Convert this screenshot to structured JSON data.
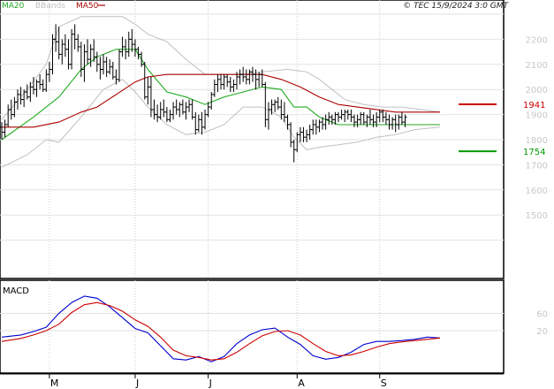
{
  "header": {
    "ma20_label": "MA20",
    "bbands_label": "BBands",
    "ma50_label": "MA50",
    "copyright": "© TEC 15/9/2024 3:0 GMT"
  },
  "colors": {
    "ma20": "#22aa22",
    "ma50": "#aa0000",
    "bbands": "#c0c0c0",
    "price": "#000000",
    "macd": "#0000cc",
    "signal": "#cc0000",
    "grid": "#e2e2e2",
    "ytick": "#c8c8c8"
  },
  "chart_data": [
    {
      "type": "line",
      "panel": "price",
      "ylim": [
        1300,
        2300
      ],
      "yticks": [
        1500,
        1600,
        1700,
        1800,
        1900,
        2000,
        2100,
        2200
      ],
      "xlim": [
        0,
        143
      ],
      "x_ticks": [
        {
          "label": "M",
          "x": 15
        },
        {
          "label": "J",
          "x": 42
        },
        {
          "label": "J",
          "x": 65
        },
        {
          "label": "A",
          "x": 93
        },
        {
          "label": "S",
          "x": 119
        }
      ],
      "levels": [
        {
          "value": 1941,
          "label": "1941",
          "color": "#cc0000"
        },
        {
          "value": 1754,
          "label": "1754",
          "color": "#009900"
        }
      ],
      "ohlc": [
        [
          1850,
          1870,
          1800,
          1830
        ],
        [
          1830,
          1880,
          1810,
          1860
        ],
        [
          1860,
          1940,
          1850,
          1920
        ],
        [
          1920,
          1960,
          1880,
          1900
        ],
        [
          1900,
          1970,
          1890,
          1950
        ],
        [
          1950,
          2000,
          1920,
          1980
        ],
        [
          1980,
          2010,
          1940,
          1960
        ],
        [
          1960,
          2000,
          1930,
          1990
        ],
        [
          1990,
          2020,
          1960,
          1970
        ],
        [
          1970,
          2030,
          1950,
          2010
        ],
        [
          2010,
          2050,
          1980,
          2000
        ],
        [
          2000,
          2040,
          1970,
          2030
        ],
        [
          2030,
          2060,
          2000,
          2020
        ],
        [
          2020,
          2040,
          1990,
          2000
        ],
        [
          2000,
          2080,
          1990,
          2060
        ],
        [
          2060,
          2110,
          2030,
          2080
        ],
        [
          2080,
          2220,
          2060,
          2200
        ],
        [
          2200,
          2260,
          2150,
          2190
        ],
        [
          2190,
          2250,
          2120,
          2140
        ],
        [
          2140,
          2200,
          2100,
          2180
        ],
        [
          2180,
          2220,
          2130,
          2160
        ],
        [
          2160,
          2200,
          2080,
          2100
        ],
        [
          2100,
          2240,
          2080,
          2220
        ],
        [
          2220,
          2260,
          2160,
          2200
        ],
        [
          2200,
          2220,
          2150,
          2170
        ],
        [
          2170,
          2190,
          2050,
          2080
        ],
        [
          2080,
          2180,
          2030,
          2150
        ],
        [
          2150,
          2200,
          2100,
          2120
        ],
        [
          2120,
          2180,
          2090,
          2160
        ],
        [
          2160,
          2200,
          2110,
          2130
        ],
        [
          2130,
          2150,
          2070,
          2100
        ],
        [
          2100,
          2130,
          2040,
          2080
        ],
        [
          2080,
          2140,
          2060,
          2110
        ],
        [
          2110,
          2130,
          2050,
          2070
        ],
        [
          2070,
          2120,
          2060,
          2090
        ],
        [
          2090,
          2110,
          2040,
          2050
        ],
        [
          2050,
          2080,
          2020,
          2040
        ],
        [
          2040,
          2160,
          2030,
          2150
        ],
        [
          2150,
          2210,
          2130,
          2170
        ],
        [
          2170,
          2200,
          2120,
          2150
        ],
        [
          2150,
          2230,
          2130,
          2200
        ],
        [
          2200,
          2240,
          2150,
          2180
        ],
        [
          2180,
          2200,
          2130,
          2160
        ],
        [
          2160,
          2170,
          2120,
          2140
        ],
        [
          2140,
          2150,
          2090,
          2100
        ],
        [
          2100,
          2110,
          1960,
          1970
        ],
        [
          1970,
          2050,
          1940,
          2010
        ],
        [
          2010,
          2050,
          1890,
          1920
        ],
        [
          1920,
          1960,
          1880,
          1900
        ],
        [
          1900,
          1940,
          1870,
          1890
        ],
        [
          1890,
          1950,
          1880,
          1920
        ],
        [
          1920,
          1960,
          1890,
          1910
        ],
        [
          1910,
          1930,
          1870,
          1880
        ],
        [
          1880,
          1920,
          1870,
          1900
        ],
        [
          1900,
          1950,
          1880,
          1930
        ],
        [
          1930,
          1960,
          1900,
          1920
        ],
        [
          1920,
          1950,
          1890,
          1940
        ],
        [
          1940,
          1960,
          1900,
          1910
        ],
        [
          1910,
          1950,
          1880,
          1930
        ],
        [
          1930,
          1960,
          1910,
          1940
        ],
        [
          1940,
          1960,
          1880,
          1890
        ],
        [
          1890,
          1910,
          1820,
          1840
        ],
        [
          1840,
          1900,
          1830,
          1880
        ],
        [
          1880,
          1910,
          1820,
          1850
        ],
        [
          1850,
          1920,
          1840,
          1900
        ],
        [
          1900,
          1950,
          1890,
          1930
        ],
        [
          1930,
          1990,
          1920,
          1980
        ],
        [
          1980,
          2040,
          1970,
          2020
        ],
        [
          2020,
          2060,
          1990,
          2040
        ],
        [
          2040,
          2060,
          2000,
          2020
        ],
        [
          2020,
          2060,
          2000,
          2050
        ],
        [
          2050,
          2060,
          2010,
          2030
        ],
        [
          2030,
          2050,
          1990,
          2010
        ],
        [
          2010,
          2040,
          1990,
          2020
        ],
        [
          2020,
          2070,
          2000,
          2050
        ],
        [
          2050,
          2080,
          2020,
          2060
        ],
        [
          2060,
          2090,
          2030,
          2050
        ],
        [
          2050,
          2080,
          2020,
          2040
        ],
        [
          2040,
          2080,
          2020,
          2070
        ],
        [
          2070,
          2090,
          2030,
          2060
        ],
        [
          2060,
          2080,
          2000,
          2040
        ],
        [
          2040,
          2070,
          2010,
          2060
        ],
        [
          2060,
          2080,
          2010,
          2020
        ],
        [
          2020,
          2030,
          1850,
          1880
        ],
        [
          1880,
          1950,
          1840,
          1920
        ],
        [
          1920,
          1960,
          1900,
          1940
        ],
        [
          1940,
          1960,
          1910,
          1950
        ],
        [
          1950,
          1970,
          1920,
          1930
        ],
        [
          1930,
          1960,
          1880,
          1900
        ],
        [
          1900,
          1950,
          1870,
          1890
        ],
        [
          1890,
          1900,
          1840,
          1860
        ],
        [
          1860,
          1870,
          1770,
          1790
        ],
        [
          1790,
          1800,
          1710,
          1760
        ],
        [
          1760,
          1830,
          1750,
          1820
        ],
        [
          1820,
          1850,
          1790,
          1830
        ],
        [
          1830,
          1850,
          1790,
          1810
        ],
        [
          1810,
          1840,
          1790,
          1820
        ],
        [
          1820,
          1860,
          1800,
          1840
        ],
        [
          1840,
          1880,
          1820,
          1860
        ],
        [
          1860,
          1880,
          1820,
          1850
        ],
        [
          1850,
          1880,
          1830,
          1870
        ],
        [
          1870,
          1890,
          1840,
          1860
        ],
        [
          1860,
          1900,
          1840,
          1880
        ],
        [
          1880,
          1910,
          1860,
          1890
        ],
        [
          1890,
          1900,
          1860,
          1880
        ],
        [
          1880,
          1910,
          1860,
          1900
        ],
        [
          1900,
          1910,
          1870,
          1890
        ],
        [
          1890,
          1920,
          1880,
          1900
        ],
        [
          1900,
          1920,
          1870,
          1910
        ],
        [
          1910,
          1920,
          1880,
          1900
        ],
        [
          1900,
          1920,
          1870,
          1890
        ],
        [
          1890,
          1900,
          1850,
          1870
        ],
        [
          1870,
          1900,
          1850,
          1880
        ],
        [
          1880,
          1910,
          1860,
          1900
        ],
        [
          1900,
          1910,
          1860,
          1870
        ],
        [
          1870,
          1900,
          1850,
          1890
        ],
        [
          1890,
          1920,
          1860,
          1880
        ],
        [
          1880,
          1900,
          1850,
          1870
        ],
        [
          1870,
          1910,
          1850,
          1890
        ],
        [
          1890,
          1920,
          1870,
          1910
        ],
        [
          1910,
          1920,
          1870,
          1890
        ],
        [
          1890,
          1910,
          1860,
          1880
        ],
        [
          1880,
          1900,
          1840,
          1860
        ],
        [
          1860,
          1890,
          1840,
          1880
        ],
        [
          1880,
          1900,
          1830,
          1860
        ],
        [
          1860,
          1900,
          1840,
          1890
        ],
        [
          1890,
          1910,
          1860,
          1870
        ],
        [
          1870,
          1900,
          1850,
          1890
        ]
      ],
      "series": [
        {
          "name": "MA20",
          "color": "#22aa22",
          "x": [
            0,
            10,
            18,
            25,
            30,
            36,
            42,
            46,
            52,
            58,
            64,
            70,
            76,
            82,
            88,
            92,
            96,
            100,
            106,
            112,
            118,
            124,
            130,
            138
          ],
          "values": [
            1800,
            1890,
            1970,
            2080,
            2130,
            2160,
            2160,
            2080,
            1990,
            1970,
            1940,
            1970,
            1990,
            2010,
            2000,
            1930,
            1930,
            1890,
            1860,
            1860,
            1860,
            1860,
            1860,
            1860
          ]
        },
        {
          "name": "MA50",
          "color": "#aa0000",
          "x": [
            0,
            10,
            18,
            25,
            30,
            36,
            42,
            46,
            52,
            58,
            64,
            70,
            76,
            82,
            88,
            94,
            100,
            106,
            112,
            118,
            124,
            130,
            138
          ],
          "values": [
            1850,
            1850,
            1870,
            1910,
            1930,
            1980,
            2030,
            2050,
            2060,
            2060,
            2060,
            2060,
            2060,
            2060,
            2040,
            2010,
            1970,
            1940,
            1930,
            1920,
            1910,
            1910,
            1910
          ]
        },
        {
          "name": "BBands upper",
          "color": "#c0c0c0",
          "x": [
            0,
            8,
            14,
            18,
            25,
            32,
            38,
            42,
            46,
            52,
            58,
            64,
            70,
            76,
            82,
            90,
            96,
            100,
            104,
            108,
            114,
            120,
            126,
            132,
            138
          ],
          "values": [
            1880,
            2000,
            2100,
            2250,
            2290,
            2290,
            2290,
            2260,
            2220,
            2190,
            2120,
            2060,
            2060,
            2060,
            2070,
            2080,
            2070,
            2040,
            2000,
            1960,
            1940,
            1930,
            1930,
            1920,
            1910
          ]
        },
        {
          "name": "BBands lower",
          "color": "#c0c0c0",
          "x": [
            0,
            8,
            14,
            18,
            25,
            32,
            38,
            42,
            46,
            52,
            58,
            64,
            70,
            76,
            82,
            88,
            92,
            96,
            100,
            106,
            112,
            118,
            124,
            130,
            138
          ],
          "values": [
            1690,
            1740,
            1800,
            1790,
            1890,
            2000,
            2040,
            1990,
            1930,
            1860,
            1820,
            1830,
            1860,
            1930,
            1930,
            1890,
            1810,
            1760,
            1770,
            1780,
            1790,
            1810,
            1820,
            1840,
            1850
          ]
        }
      ]
    },
    {
      "type": "line",
      "panel": "macd",
      "title": "MACD",
      "ylim": [
        -70,
        110
      ],
      "yticks": [
        20,
        60
      ],
      "xlim": [
        0,
        143
      ],
      "series": [
        {
          "name": "MACD",
          "color": "#0000cc",
          "x": [
            0,
            6,
            10,
            14,
            18,
            22,
            26,
            30,
            34,
            38,
            42,
            46,
            50,
            54,
            58,
            62,
            66,
            70,
            74,
            78,
            82,
            86,
            90,
            94,
            98,
            102,
            106,
            110,
            114,
            118,
            122,
            126,
            130,
            134,
            138
          ],
          "values": [
            5,
            10,
            18,
            28,
            60,
            85,
            100,
            95,
            75,
            50,
            25,
            15,
            -15,
            -45,
            -48,
            -40,
            -52,
            -40,
            -10,
            10,
            22,
            26,
            5,
            -12,
            -38,
            -46,
            -42,
            -30,
            -12,
            -5,
            -5,
            -3,
            0,
            5,
            3
          ]
        },
        {
          "name": "Signal",
          "color": "#cc0000",
          "x": [
            0,
            6,
            10,
            14,
            18,
            22,
            26,
            30,
            34,
            38,
            42,
            46,
            50,
            54,
            58,
            62,
            66,
            70,
            74,
            78,
            82,
            86,
            90,
            94,
            98,
            102,
            106,
            110,
            114,
            118,
            122,
            126,
            130,
            134,
            138
          ],
          "values": [
            -5,
            2,
            10,
            20,
            35,
            62,
            80,
            85,
            78,
            65,
            45,
            30,
            5,
            -25,
            -38,
            -42,
            -48,
            -45,
            -30,
            -10,
            8,
            18,
            20,
            10,
            -10,
            -28,
            -38,
            -36,
            -28,
            -18,
            -10,
            -6,
            -3,
            0,
            3
          ]
        }
      ]
    }
  ]
}
